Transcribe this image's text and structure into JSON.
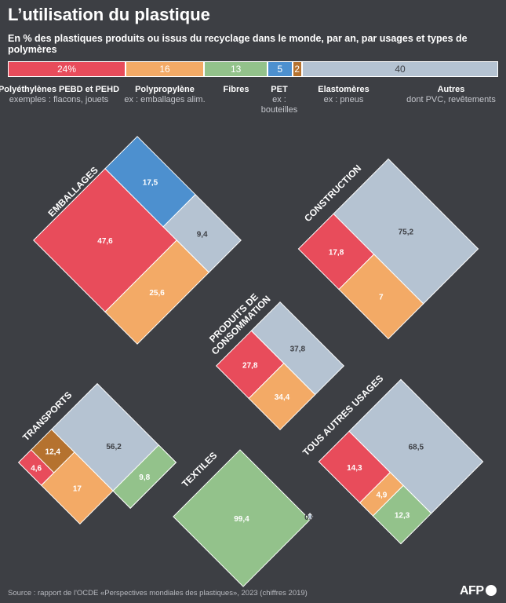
{
  "title": "L’utilisation du plastique",
  "subtitle": "En % des plastiques produits ou issus du recyclage dans le monde, par an, par usages et types de polymères",
  "colors": {
    "pe": "#e84c5b",
    "pp": "#f3aa66",
    "fibres": "#93c28b",
    "pet": "#4d90cf",
    "elast": "#b5722f",
    "autres": "#b5c3d2",
    "background": "#3d3f44"
  },
  "polymer_bar": [
    {
      "key": "pe",
      "display": "24%",
      "value": 24
    },
    {
      "key": "pp",
      "display": "16",
      "value": 16
    },
    {
      "key": "fibres",
      "display": "13",
      "value": 13
    },
    {
      "key": "pet",
      "display": "5",
      "value": 5
    },
    {
      "key": "elast",
      "display": "2",
      "value": 2
    },
    {
      "key": "autres",
      "display": "40",
      "value": 40
    }
  ],
  "legend": {
    "pe": {
      "name": "Polyéthylènes PEBD et PEHD",
      "note": "exemples : flacons, jouets"
    },
    "pp": {
      "name": "Polypropylène",
      "note": "ex : emballages alim."
    },
    "fibres": {
      "name": "Fibres",
      "note": ""
    },
    "pet": {
      "name": "PET",
      "note": "ex : bouteilles"
    },
    "elast": {
      "name": "Elastomères",
      "note": "ex : pneus"
    },
    "autres": {
      "name": "Autres",
      "note": "dont PVC, revêtements"
    }
  },
  "chart_data": {
    "type": "treemap",
    "sectors": [
      {
        "label": "EMBALLAGES",
        "items": [
          {
            "key": "pe",
            "value": 47.6,
            "label": "47,6"
          },
          {
            "key": "pet",
            "value": 17.5,
            "label": "17,5"
          },
          {
            "key": "autres",
            "value": 9.4,
            "label": "9,4"
          },
          {
            "key": "pp",
            "value": 25.6,
            "label": "25,6"
          }
        ]
      },
      {
        "label": "CONSTRUCTION",
        "items": [
          {
            "key": "pe",
            "value": 17.8,
            "label": "17,8"
          },
          {
            "key": "autres",
            "value": 75.2,
            "label": "75,2"
          },
          {
            "key": "pp",
            "value": 7,
            "label": "7"
          }
        ]
      },
      {
        "label": "PRODUITS DE\nCONSOMMATION",
        "items": [
          {
            "key": "pe",
            "value": 27.8,
            "label": "27,8"
          },
          {
            "key": "autres",
            "value": 37.8,
            "label": "37,8"
          },
          {
            "key": "pp",
            "value": 34.4,
            "label": "34,4"
          }
        ]
      },
      {
        "label": "TRANSPORTS",
        "items": [
          {
            "key": "pe",
            "value": 4.6,
            "label": "4,6"
          },
          {
            "key": "elast",
            "value": 12.4,
            "label": "12,4"
          },
          {
            "key": "autres",
            "value": 56.2,
            "label": "56,2"
          },
          {
            "key": "pp",
            "value": 17,
            "label": "17"
          },
          {
            "key": "fibres",
            "value": 9.8,
            "label": "9,8"
          }
        ]
      },
      {
        "label": "TEXTILES",
        "items": [
          {
            "key": "fibres",
            "value": 99.4,
            "label": "99,4"
          },
          {
            "key": "autres",
            "value": 0.6,
            "label": "0,6"
          }
        ]
      },
      {
        "label": "TOUS AUTRES USAGES",
        "items": [
          {
            "key": "pe",
            "value": 14.3,
            "label": "14,3"
          },
          {
            "key": "autres",
            "value": 68.5,
            "label": "68,5"
          },
          {
            "key": "pp",
            "value": 4.9,
            "label": "4,9"
          },
          {
            "key": "fibres",
            "value": 12.3,
            "label": "12,3"
          }
        ]
      }
    ]
  },
  "source": "Source : rapport de l'OCDE «Perspectives mondiales des plastiques», 2023 (chiffres 2019)",
  "logo": "AFP"
}
